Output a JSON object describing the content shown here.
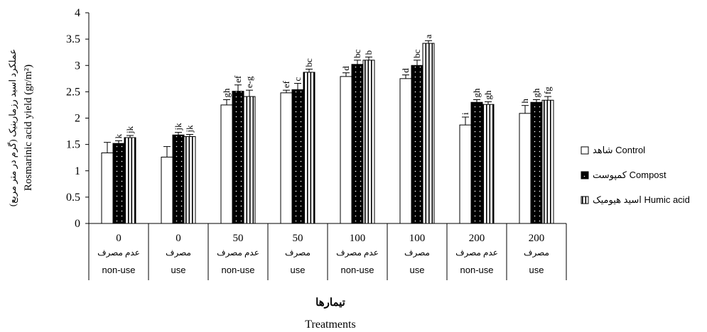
{
  "chart_data": {
    "type": "bar",
    "ylabel_fa": "عملکرد اسید رزمارینیک (گرم در متر مربع)",
    "ylabel_en": "Rosmarinic acid yield (gr/m²)",
    "xlabel_fa": "تیمارها",
    "xlabel_en": "Treatments",
    "ylim": [
      0,
      4
    ],
    "yticks": [
      "0",
      "0.5",
      "1",
      "1.5",
      "2",
      "2.5",
      "3",
      "3.5",
      "4"
    ],
    "ytick_values": [
      0,
      0.5,
      1,
      1.5,
      2,
      2.5,
      3,
      3.5,
      4
    ],
    "categories": [
      {
        "top": "0",
        "fa": "عدم مصرف",
        "en": "non-use"
      },
      {
        "top": "0",
        "fa": "مصرف",
        "en": "use"
      },
      {
        "top": "50",
        "fa": "عدم مصرف",
        "en": "non-use"
      },
      {
        "top": "50",
        "fa": "مصرف",
        "en": "use"
      },
      {
        "top": "100",
        "fa": "عدم مصرف",
        "en": "non-use"
      },
      {
        "top": "100",
        "fa": "مصرف",
        "en": "use"
      },
      {
        "top": "200",
        "fa": "عدم مصرف",
        "en": "non-use"
      },
      {
        "top": "200",
        "fa": "مصرف",
        "en": "use"
      }
    ],
    "series": [
      {
        "name": "شاهد Control",
        "fill": "white",
        "values": [
          1.34,
          1.26,
          2.25,
          2.48,
          2.79,
          2.75,
          1.87,
          2.09
        ],
        "errors": [
          0.2,
          0.2,
          0.1,
          0.05,
          0.07,
          0.07,
          0.15,
          0.15
        ],
        "letters": [
          "",
          "",
          "gh",
          "ef",
          "d",
          "d",
          "i",
          "h"
        ]
      },
      {
        "name": "کمپوست Compost",
        "fill": "black",
        "values": [
          1.52,
          1.68,
          2.51,
          2.54,
          3.02,
          3.0,
          2.3,
          2.3
        ],
        "errors": [
          0.05,
          0.05,
          0.12,
          0.12,
          0.08,
          0.1,
          0.05,
          0.05
        ],
        "letters": [
          "k",
          "jk",
          "ef",
          "c",
          "bc",
          "bc",
          "gh",
          "gh"
        ]
      },
      {
        "name": "اسید هیومیک Humic acid",
        "fill": "striped",
        "values": [
          1.63,
          1.65,
          2.41,
          2.87,
          3.1,
          3.42,
          2.26,
          2.34
        ],
        "errors": [
          0.04,
          0.04,
          0.12,
          0.06,
          0.06,
          0.05,
          0.05,
          0.07
        ],
        "letters": [
          "jk",
          "jk",
          "e-g",
          "bc",
          "b",
          "a",
          "gh",
          "fg"
        ]
      }
    ],
    "legend_position": "right",
    "grid": false
  }
}
